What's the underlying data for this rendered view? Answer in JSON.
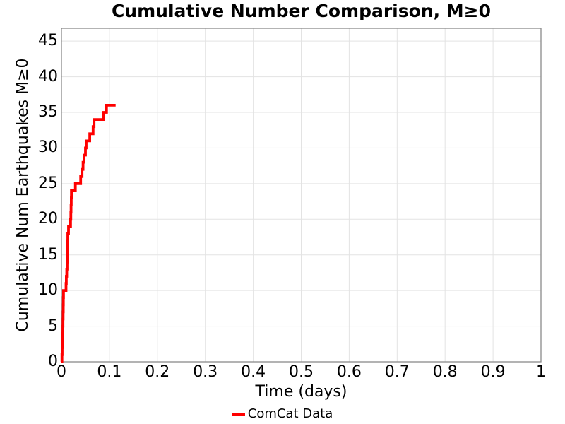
{
  "colors": {
    "series": "#ff0000",
    "grid": "#e3e3e3",
    "spine": "#8a8a8a",
    "text": "#000000",
    "background": "#ffffff"
  },
  "chart_data": {
    "type": "line",
    "subtype": "cumulative-step",
    "title": "Cumulative Number Comparison, M≥0",
    "xlabel": "Time (days)",
    "ylabel": "Cumulative Num Earthquakes M≥0",
    "xlim": [
      0,
      1
    ],
    "ylim": [
      0,
      46.8
    ],
    "grid": true,
    "xticks": {
      "values": [
        0,
        0.1,
        0.2,
        0.3,
        0.4,
        0.5,
        0.6,
        0.7,
        0.8,
        0.9,
        1
      ],
      "labels": [
        "0",
        "0.1",
        "0.2",
        "0.3",
        "0.4",
        "0.5",
        "0.6",
        "0.7",
        "0.8",
        "0.9",
        "1"
      ]
    },
    "yticks": {
      "values": [
        0,
        5,
        10,
        15,
        20,
        25,
        30,
        35,
        40,
        45
      ],
      "labels": [
        "0",
        "5",
        "10",
        "15",
        "20",
        "25",
        "30",
        "35",
        "40",
        "45"
      ]
    },
    "legend": {
      "position": "bottom-center",
      "entries": [
        {
          "label": "ComCat Data",
          "color": "#ff0000"
        }
      ]
    },
    "series": [
      {
        "name": "ComCat Data",
        "color": "#ff0000",
        "step": "post",
        "x": [
          0,
          0.001,
          0.0015,
          0.002,
          0.0025,
          0.003,
          0.0033,
          0.0036,
          0.0038,
          0.004,
          0.0042,
          0.0095,
          0.0102,
          0.011,
          0.0118,
          0.0125,
          0.0128,
          0.013,
          0.0133,
          0.0147,
          0.019,
          0.0196,
          0.02,
          0.0204,
          0.0208,
          0.029,
          0.04,
          0.043,
          0.045,
          0.047,
          0.05,
          0.0515,
          0.059,
          0.066,
          0.068,
          0.088,
          0.094,
          0.113
        ],
        "y": [
          0,
          1,
          2,
          3,
          4,
          5,
          6,
          7,
          8,
          9,
          10,
          11,
          12,
          13,
          14,
          15,
          16,
          17,
          18,
          19,
          20,
          21,
          22,
          23,
          24,
          25,
          26,
          27,
          28,
          29,
          30,
          31,
          32,
          33,
          34,
          35,
          36,
          36
        ]
      }
    ]
  }
}
